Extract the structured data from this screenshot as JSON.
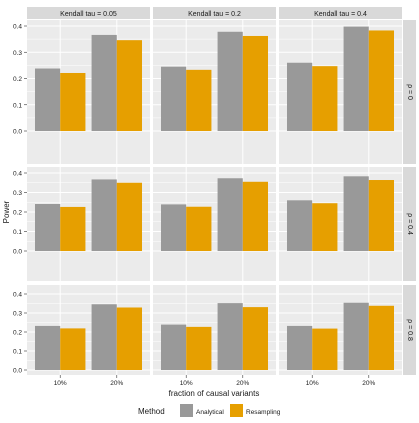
{
  "chart_data": {
    "type": "bar",
    "ylabel": "Power",
    "xlabel": "fraction of causal variants",
    "categories": [
      "10%",
      "20%"
    ],
    "ylim": [
      0,
      0.4
    ],
    "yticks": [
      "0.0",
      "0.1",
      "0.2",
      "0.3",
      "0.4"
    ],
    "grid": true,
    "legend": {
      "title": "Method",
      "placement": "bottom",
      "entries": [
        "Analytical",
        "Resampling"
      ]
    },
    "colors": {
      "Analytical": "#999999",
      "Resampling": "#E69F00",
      "strip": "#d9d9d9",
      "panel": "#ebebeb",
      "grid": "#ffffff"
    },
    "column_facets": [
      "Kendall tau = 0.05",
      "Kendall tau = 0.2",
      "Kendall tau = 0.4"
    ],
    "row_facets": [
      "ρ = 0",
      "ρ = 0.4",
      "ρ = 0.8"
    ],
    "panels": [
      {
        "row": 0,
        "col": 0,
        "series": [
          {
            "name": "Analytical",
            "values": [
              0.238,
              0.366
            ]
          },
          {
            "name": "Resampling",
            "values": [
              0.221,
              0.346
            ]
          }
        ]
      },
      {
        "row": 0,
        "col": 1,
        "series": [
          {
            "name": "Analytical",
            "values": [
              0.245,
              0.378
            ]
          },
          {
            "name": "Resampling",
            "values": [
              0.233,
              0.362
            ]
          }
        ]
      },
      {
        "row": 0,
        "col": 2,
        "series": [
          {
            "name": "Analytical",
            "values": [
              0.26,
              0.398
            ]
          },
          {
            "name": "Resampling",
            "values": [
              0.247,
              0.383
            ]
          }
        ]
      },
      {
        "row": 1,
        "col": 0,
        "series": [
          {
            "name": "Analytical",
            "values": [
              0.241,
              0.367
            ]
          },
          {
            "name": "Resampling",
            "values": [
              0.226,
              0.35
            ]
          }
        ]
      },
      {
        "row": 1,
        "col": 1,
        "series": [
          {
            "name": "Analytical",
            "values": [
              0.239,
              0.373
            ]
          },
          {
            "name": "Resampling",
            "values": [
              0.227,
              0.355
            ]
          }
        ]
      },
      {
        "row": 1,
        "col": 2,
        "series": [
          {
            "name": "Analytical",
            "values": [
              0.26,
              0.383
            ]
          },
          {
            "name": "Resampling",
            "values": [
              0.245,
              0.364
            ]
          }
        ]
      },
      {
        "row": 2,
        "col": 0,
        "series": [
          {
            "name": "Analytical",
            "values": [
              0.232,
              0.346
            ]
          },
          {
            "name": "Resampling",
            "values": [
              0.219,
              0.329
            ]
          }
        ]
      },
      {
        "row": 2,
        "col": 1,
        "series": [
          {
            "name": "Analytical",
            "values": [
              0.239,
              0.352
            ]
          },
          {
            "name": "Resampling",
            "values": [
              0.227,
              0.331
            ]
          }
        ]
      },
      {
        "row": 2,
        "col": 2,
        "series": [
          {
            "name": "Analytical",
            "values": [
              0.232,
              0.354
            ]
          },
          {
            "name": "Resampling",
            "values": [
              0.218,
              0.338
            ]
          }
        ]
      }
    ]
  }
}
